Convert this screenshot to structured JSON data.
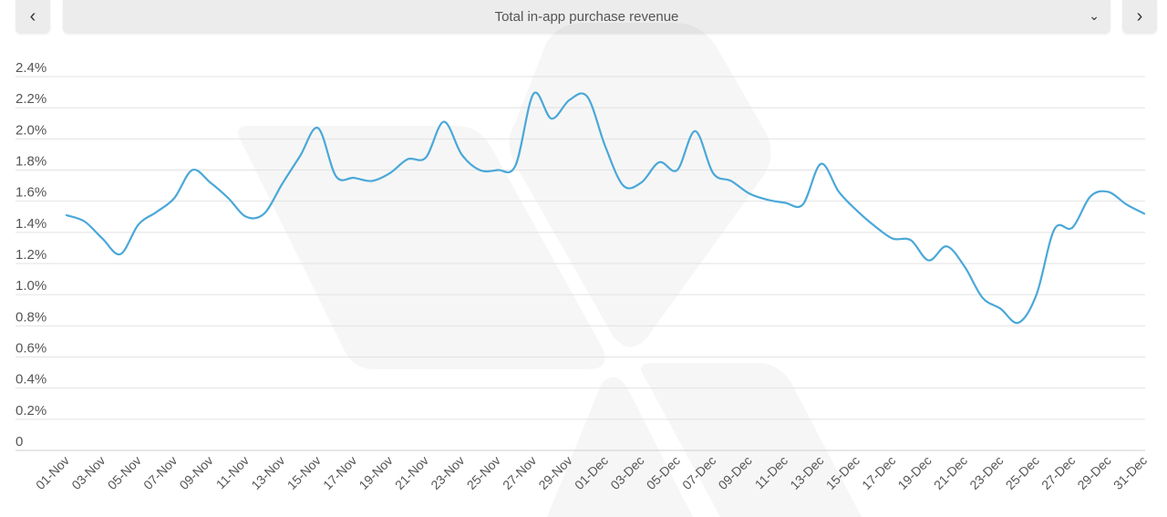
{
  "header": {
    "prev_icon": "chevron-left-icon",
    "next_icon": "chevron-right-icon",
    "dropdown_icon": "chevron-down-icon",
    "selected_metric": "Total in-app purchase revenue"
  },
  "chart_data": {
    "type": "line",
    "title": "",
    "xlabel": "",
    "ylabel": "",
    "ylim": [
      0,
      2.4
    ],
    "grid": true,
    "line_color": "#4aa8d8",
    "y_ticks": [
      "0",
      "0.2%",
      "0.4%",
      "0.6%",
      "0.8%",
      "1.0%",
      "1.2%",
      "1.4%",
      "1.6%",
      "1.8%",
      "2.0%",
      "2.2%",
      "2.4%"
    ],
    "x_tick_labels": [
      "01-Nov",
      "03-Nov",
      "05-Nov",
      "07-Nov",
      "09-Nov",
      "11-Nov",
      "13-Nov",
      "15-Nov",
      "17-Nov",
      "19-Nov",
      "21-Nov",
      "23-Nov",
      "25-Nov",
      "27-Nov",
      "29-Nov",
      "01-Dec",
      "03-Dec",
      "05-Dec",
      "07-Dec",
      "09-Dec",
      "11-Dec",
      "13-Dec",
      "15-Dec",
      "17-Dec",
      "19-Dec",
      "21-Dec",
      "23-Dec",
      "25-Dec",
      "27-Dec",
      "29-Dec",
      "31-Dec"
    ],
    "x": [
      "01-Nov",
      "02-Nov",
      "03-Nov",
      "04-Nov",
      "05-Nov",
      "06-Nov",
      "07-Nov",
      "08-Nov",
      "09-Nov",
      "10-Nov",
      "11-Nov",
      "12-Nov",
      "13-Nov",
      "14-Nov",
      "15-Nov",
      "16-Nov",
      "17-Nov",
      "18-Nov",
      "19-Nov",
      "20-Nov",
      "21-Nov",
      "22-Nov",
      "23-Nov",
      "24-Nov",
      "25-Nov",
      "26-Nov",
      "27-Nov",
      "28-Nov",
      "29-Nov",
      "30-Nov",
      "01-Dec",
      "02-Dec",
      "03-Dec",
      "04-Dec",
      "05-Dec",
      "06-Dec",
      "07-Dec",
      "08-Dec",
      "09-Dec",
      "10-Dec",
      "11-Dec",
      "12-Dec",
      "13-Dec",
      "14-Dec",
      "15-Dec",
      "16-Dec",
      "17-Dec",
      "18-Dec",
      "19-Dec",
      "20-Dec",
      "21-Dec",
      "22-Dec",
      "23-Dec",
      "24-Dec",
      "25-Dec",
      "26-Dec",
      "27-Dec",
      "28-Dec",
      "29-Dec",
      "30-Dec",
      "31-Dec"
    ],
    "series": [
      {
        "values": [
          1.51,
          1.47,
          1.36,
          1.26,
          1.45,
          1.53,
          1.62,
          1.8,
          1.72,
          1.62,
          1.5,
          1.52,
          1.71,
          1.89,
          2.07,
          1.76,
          1.75,
          1.73,
          1.78,
          1.87,
          1.88,
          2.11,
          1.9,
          1.8,
          1.8,
          1.83,
          2.29,
          2.13,
          2.25,
          2.27,
          1.95,
          1.7,
          1.72,
          1.85,
          1.8,
          2.05,
          1.78,
          1.73,
          1.65,
          1.61,
          1.59,
          1.58,
          1.84,
          1.66,
          1.54,
          1.44,
          1.36,
          1.35,
          1.22,
          1.31,
          1.18,
          0.98,
          0.91,
          0.82,
          1.0,
          1.42,
          1.43,
          1.63,
          1.66,
          1.58,
          1.52
        ]
      }
    ]
  }
}
